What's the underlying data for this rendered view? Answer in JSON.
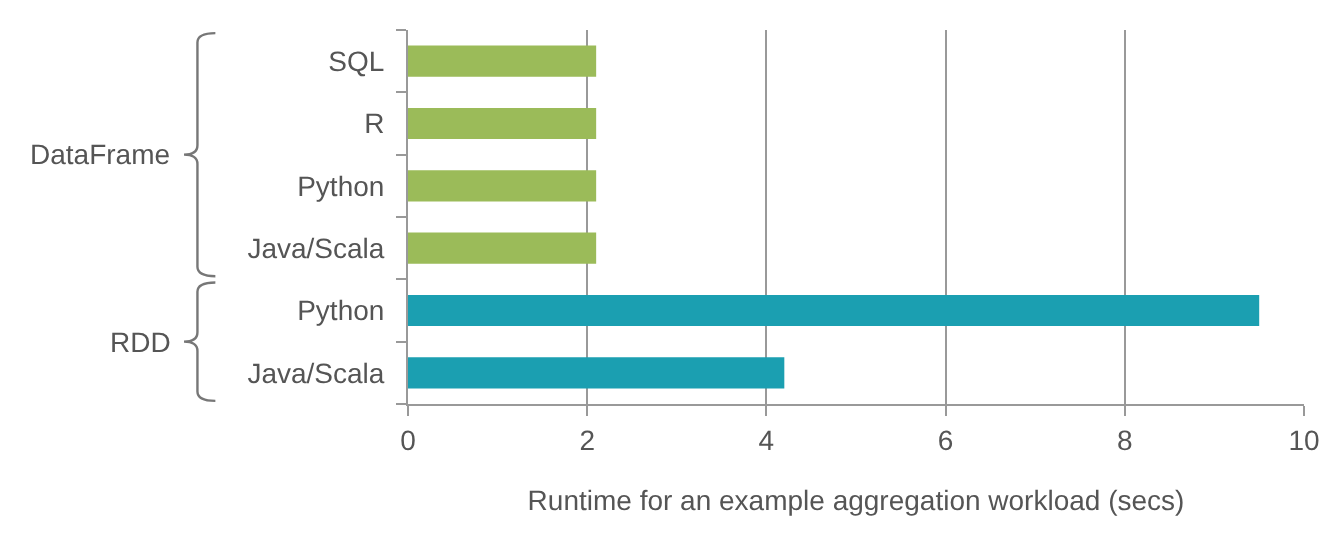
{
  "chart_data": {
    "type": "bar",
    "orientation": "horizontal",
    "categories": [
      "SQL",
      "R",
      "Python",
      "Java/Scala",
      "Python",
      "Java/Scala"
    ],
    "values": [
      2.1,
      2.1,
      2.1,
      2.1,
      9.5,
      4.2
    ],
    "colors": [
      "#9bbb59",
      "#9bbb59",
      "#9bbb59",
      "#9bbb59",
      "#1b9fb1",
      "#1b9fb1"
    ],
    "xlabel": "Runtime for an example aggregation workload (secs)",
    "xlim": [
      0,
      10
    ],
    "xticks": [
      0,
      2,
      4,
      6,
      8,
      10
    ],
    "grid": "x",
    "annotations": [
      "DataFrame",
      "RDD"
    ]
  }
}
